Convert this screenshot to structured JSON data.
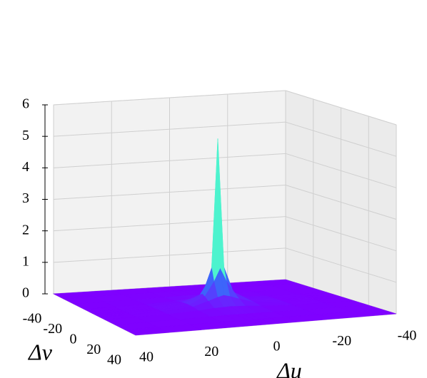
{
  "chart_data": {
    "type": "surface",
    "colormap": "rainbow",
    "xlabel": "Δu",
    "ylabel": "Δv",
    "x": [
      -40,
      -30,
      -20,
      -10,
      -5,
      -2,
      0,
      2,
      5,
      10,
      20,
      30,
      40
    ],
    "y": [
      -40,
      -30,
      -20,
      -10,
      -5,
      -2,
      0,
      2,
      5,
      10,
      20,
      30,
      40
    ],
    "z": [
      [
        0,
        0,
        0,
        0,
        0,
        0,
        0,
        0,
        0,
        0,
        0,
        0,
        0
      ],
      [
        0,
        0.01,
        0.01,
        0.01,
        0.01,
        0.01,
        0.01,
        0.01,
        0.01,
        0.01,
        0.01,
        0.01,
        0
      ],
      [
        0,
        0.01,
        0.01,
        0.02,
        0.03,
        0.03,
        0.03,
        0.03,
        0.03,
        0.02,
        0.01,
        0.01,
        0
      ],
      [
        0,
        0.01,
        0.02,
        0.06,
        0.1,
        0.11,
        0.12,
        0.11,
        0.1,
        0.06,
        0.02,
        0.01,
        0
      ],
      [
        0,
        0.01,
        0.03,
        0.1,
        0.25,
        0.35,
        0.4,
        0.35,
        0.25,
        0.1,
        0.03,
        0.01,
        0
      ],
      [
        0,
        0.01,
        0.03,
        0.11,
        0.35,
        0.8,
        1.2,
        0.8,
        0.35,
        0.11,
        0.03,
        0.01,
        0
      ],
      [
        0,
        0.01,
        0.03,
        0.12,
        0.4,
        1.2,
        5.3,
        1.2,
        0.4,
        0.12,
        0.03,
        0.01,
        0
      ],
      [
        0,
        0.01,
        0.03,
        0.11,
        0.35,
        0.8,
        1.2,
        0.8,
        0.35,
        0.11,
        0.03,
        0.01,
        0
      ],
      [
        0,
        0.01,
        0.03,
        0.1,
        0.25,
        0.35,
        0.4,
        0.35,
        0.25,
        0.1,
        0.03,
        0.01,
        0
      ],
      [
        0,
        0.01,
        0.02,
        0.06,
        0.1,
        0.11,
        0.12,
        0.11,
        0.1,
        0.06,
        0.02,
        0.01,
        0
      ],
      [
        0,
        0.01,
        0.01,
        0.02,
        0.03,
        0.03,
        0.03,
        0.03,
        0.03,
        0.02,
        0.01,
        0.01,
        0
      ],
      [
        0,
        0.01,
        0.01,
        0.01,
        0.01,
        0.01,
        0.01,
        0.01,
        0.01,
        0.01,
        0.01,
        0.01,
        0
      ],
      [
        0,
        0,
        0,
        0,
        0,
        0,
        0,
        0,
        0,
        0,
        0,
        0,
        0
      ]
    ],
    "xlim": [
      -40,
      40
    ],
    "xticks": [
      -40,
      -20,
      0,
      20,
      40
    ],
    "ylim": [
      -40,
      40
    ],
    "yticks": [
      -40,
      -20,
      0,
      20,
      40
    ],
    "zlim": [
      0,
      6
    ],
    "zticks": [
      0,
      1,
      2,
      3,
      4,
      5,
      6
    ],
    "grid": true
  }
}
